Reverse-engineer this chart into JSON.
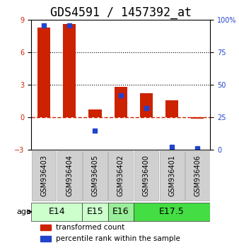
{
  "title": "GDS4591 / 1457392_at",
  "samples": [
    "GSM936403",
    "GSM936404",
    "GSM936405",
    "GSM936402",
    "GSM936400",
    "GSM936401",
    "GSM936406"
  ],
  "transformed_count": [
    8.3,
    8.6,
    0.7,
    2.8,
    2.2,
    1.6,
    -0.15
  ],
  "percentile_rank": [
    96,
    96,
    15,
    42,
    32,
    2,
    1
  ],
  "age_groups": [
    {
      "label": "E14",
      "start": 0,
      "end": 2,
      "color": "#ccffcc"
    },
    {
      "label": "E15",
      "start": 2,
      "end": 3,
      "color": "#ccffcc"
    },
    {
      "label": "E16",
      "start": 3,
      "end": 4,
      "color": "#99ee99"
    },
    {
      "label": "E17.5",
      "start": 4,
      "end": 7,
      "color": "#44dd44"
    }
  ],
  "ylim_left": [
    -3,
    9
  ],
  "ylim_right": [
    0,
    100
  ],
  "yticks_left": [
    -3,
    0,
    3,
    6,
    9
  ],
  "yticks_right": [
    0,
    25,
    50,
    75,
    100
  ],
  "bar_color_red": "#cc2200",
  "bar_color_blue": "#2244cc",
  "zero_line_color": "#cc2200",
  "dotted_line_color": "#000000",
  "background_color": "#ffffff",
  "title_fontsize": 12,
  "label_fontsize": 8,
  "tick_fontsize": 7,
  "age_label_fontsize": 9,
  "legend_fontsize": 7.5
}
